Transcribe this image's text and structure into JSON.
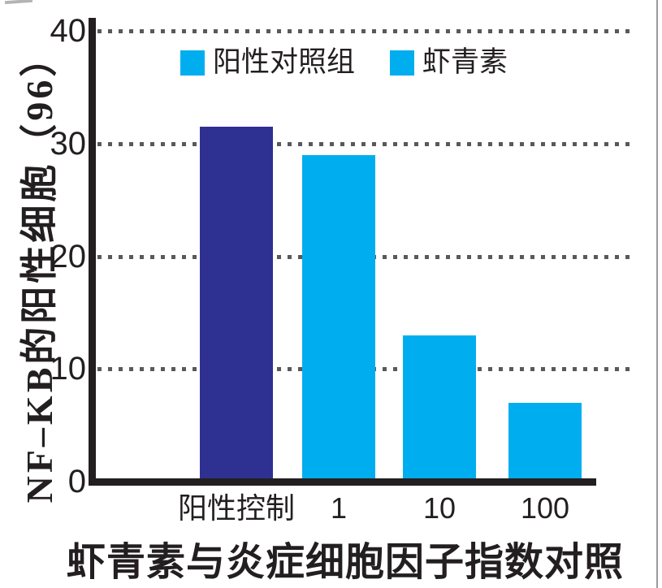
{
  "chart_data": {
    "type": "bar",
    "title": "虾青素与炎症细胞因子指数对照",
    "ylabel": "NF–KB的阳性细胞（96）",
    "xlabel": "",
    "categories": [
      "阳性控制",
      "1",
      "10",
      "100"
    ],
    "values": [
      31.5,
      29,
      13,
      7
    ],
    "bar_colors": [
      "#2E3192",
      "#00AEEF",
      "#00AEEF",
      "#00AEEF"
    ],
    "ylim": [
      0,
      40
    ],
    "yticks": [
      0,
      10,
      20,
      30,
      40
    ],
    "grid": "horizontal dotted lines at 10, 20, 30, 40",
    "legend": {
      "position": "top inside plot area",
      "entries": [
        {
          "label": "阳性对照组",
          "color": "#00AEEF"
        },
        {
          "label": "虾青素",
          "color": "#00AEEF"
        }
      ]
    }
  },
  "colors": {
    "bar_cyan": "#00AEEF",
    "bar_navy": "#2E3192",
    "axis": "#231F20",
    "gridline": "#58595B",
    "text": "#231F20",
    "page_edge": "#9B9B9B"
  }
}
